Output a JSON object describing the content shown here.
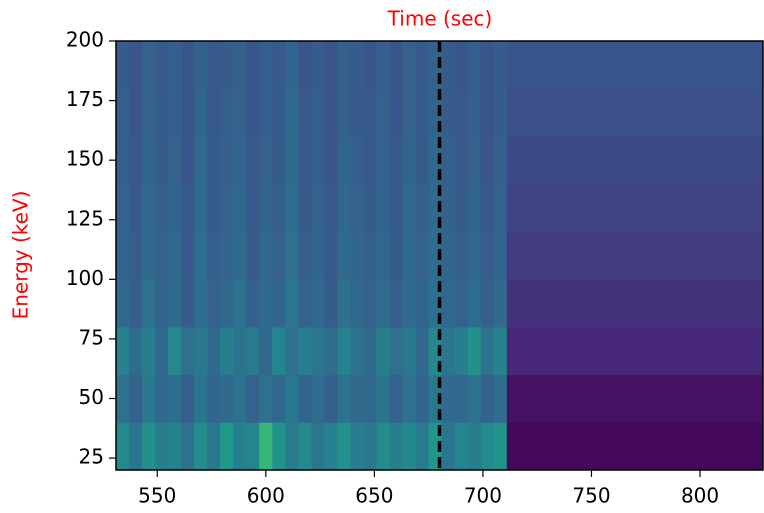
{
  "chart_data": {
    "type": "heatmap",
    "title": "Time (sec)",
    "title_color": "#ff0000",
    "y_label": "Energy (keV)",
    "y_label_color": "#ff0000",
    "colormap": "viridis",
    "zlim": [
      0,
      1
    ],
    "x_edges": [
      531,
      537,
      543,
      549,
      555,
      561,
      567,
      573,
      579,
      585,
      591,
      597,
      603,
      609,
      615,
      621,
      627,
      633,
      639,
      645,
      651,
      657,
      663,
      669,
      675,
      681,
      687,
      693,
      699,
      705,
      711,
      829
    ],
    "y_edges": [
      20,
      40,
      60,
      80,
      100,
      120,
      140,
      160,
      180,
      200
    ],
    "z": [
      [
        0.42,
        0.35,
        0.45,
        0.38,
        0.4,
        0.33,
        0.44,
        0.36,
        0.48,
        0.39,
        0.41,
        0.6,
        0.46,
        0.37,
        0.43,
        0.35,
        0.4,
        0.45,
        0.38,
        0.36,
        0.44,
        0.39,
        0.42,
        0.37,
        0.47,
        0.35,
        0.41,
        0.38,
        0.43,
        0.46,
        0.02
      ],
      [
        0.33,
        0.28,
        0.36,
        0.3,
        0.32,
        0.27,
        0.35,
        0.29,
        0.31,
        0.34,
        0.28,
        0.33,
        0.3,
        0.36,
        0.29,
        0.32,
        0.27,
        0.34,
        0.31,
        0.3,
        0.35,
        0.28,
        0.33,
        0.29,
        0.36,
        0.31,
        0.3,
        0.34,
        0.28,
        0.32,
        0.04
      ],
      [
        0.4,
        0.32,
        0.38,
        0.3,
        0.42,
        0.33,
        0.36,
        0.31,
        0.39,
        0.34,
        0.37,
        0.3,
        0.41,
        0.33,
        0.38,
        0.35,
        0.32,
        0.4,
        0.34,
        0.31,
        0.39,
        0.33,
        0.36,
        0.3,
        0.42,
        0.35,
        0.38,
        0.45,
        0.34,
        0.4,
        0.1
      ],
      [
        0.3,
        0.27,
        0.33,
        0.29,
        0.31,
        0.26,
        0.32,
        0.28,
        0.3,
        0.34,
        0.27,
        0.31,
        0.29,
        0.35,
        0.28,
        0.3,
        0.26,
        0.33,
        0.3,
        0.28,
        0.32,
        0.27,
        0.31,
        0.29,
        0.33,
        0.3,
        0.28,
        0.32,
        0.27,
        0.31,
        0.13
      ],
      [
        0.29,
        0.26,
        0.31,
        0.28,
        0.3,
        0.25,
        0.32,
        0.27,
        0.29,
        0.31,
        0.26,
        0.3,
        0.28,
        0.33,
        0.27,
        0.29,
        0.25,
        0.31,
        0.29,
        0.27,
        0.3,
        0.26,
        0.31,
        0.28,
        0.32,
        0.29,
        0.27,
        0.3,
        0.26,
        0.29,
        0.16
      ],
      [
        0.28,
        0.25,
        0.3,
        0.27,
        0.29,
        0.25,
        0.31,
        0.26,
        0.28,
        0.3,
        0.25,
        0.29,
        0.27,
        0.32,
        0.26,
        0.28,
        0.25,
        0.3,
        0.28,
        0.26,
        0.29,
        0.25,
        0.3,
        0.27,
        0.31,
        0.28,
        0.26,
        0.29,
        0.25,
        0.28,
        0.18
      ],
      [
        0.27,
        0.25,
        0.29,
        0.26,
        0.28,
        0.24,
        0.3,
        0.26,
        0.27,
        0.29,
        0.25,
        0.28,
        0.26,
        0.31,
        0.25,
        0.27,
        0.24,
        0.29,
        0.27,
        0.25,
        0.28,
        0.25,
        0.29,
        0.26,
        0.3,
        0.27,
        0.25,
        0.28,
        0.24,
        0.27,
        0.2
      ],
      [
        0.27,
        0.24,
        0.28,
        0.26,
        0.27,
        0.24,
        0.29,
        0.25,
        0.27,
        0.28,
        0.24,
        0.27,
        0.26,
        0.3,
        0.25,
        0.27,
        0.24,
        0.28,
        0.26,
        0.25,
        0.28,
        0.24,
        0.28,
        0.26,
        0.29,
        0.26,
        0.25,
        0.27,
        0.24,
        0.26,
        0.22
      ],
      [
        0.26,
        0.24,
        0.28,
        0.25,
        0.27,
        0.24,
        0.28,
        0.25,
        0.26,
        0.28,
        0.24,
        0.27,
        0.25,
        0.29,
        0.24,
        0.26,
        0.24,
        0.28,
        0.26,
        0.24,
        0.27,
        0.24,
        0.28,
        0.25,
        0.29,
        0.26,
        0.24,
        0.27,
        0.24,
        0.26,
        0.24
      ]
    ],
    "xlim": [
      531,
      829
    ],
    "ylim": [
      20,
      200
    ],
    "xticks": [
      550,
      600,
      650,
      700,
      750,
      800
    ],
    "yticks": [
      25,
      50,
      75,
      100,
      125,
      150,
      175,
      200
    ],
    "vline": {
      "x": 680,
      "color": "#000000",
      "style": "dashed"
    }
  }
}
